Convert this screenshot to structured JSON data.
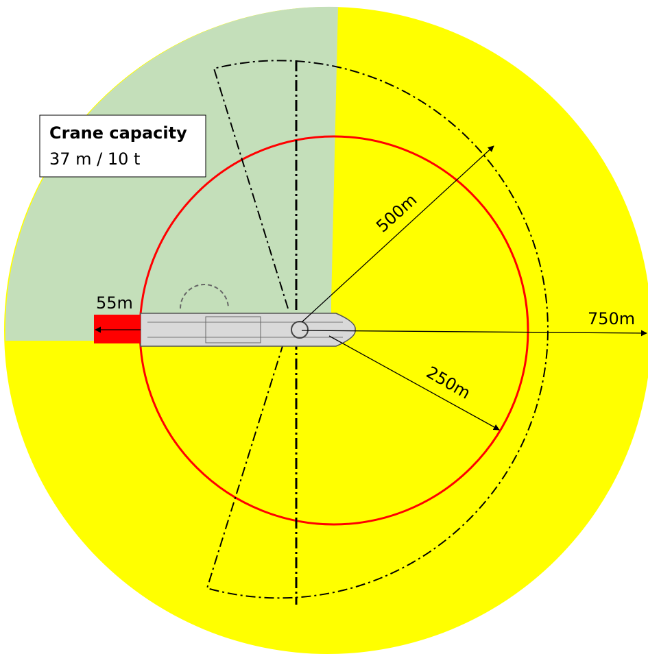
{
  "legend": {
    "title": "Crane capacity",
    "text": "37 m / 10 t"
  },
  "labels": {
    "stern": "55m",
    "outer": "750m",
    "middle": "500m",
    "inner": "250m"
  }
}
